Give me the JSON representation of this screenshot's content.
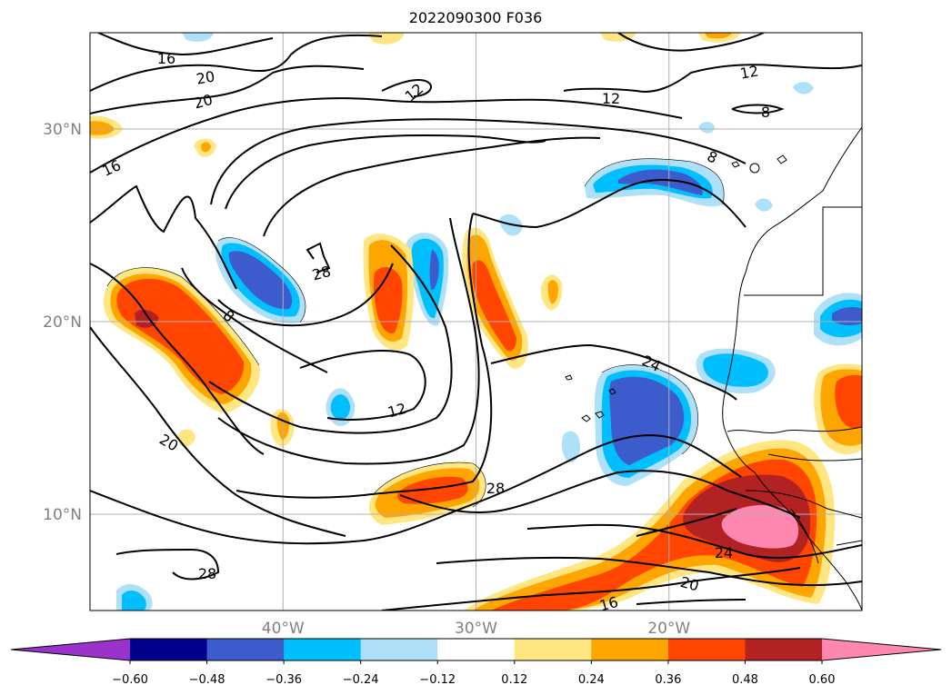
{
  "map": {
    "title": "2022090300 F036",
    "lon_range": [
      -50,
      -10
    ],
    "lat_range": [
      5,
      35
    ],
    "lon_ticks": [
      {
        "value": -40,
        "label": "40°W"
      },
      {
        "value": -30,
        "label": "30°W"
      },
      {
        "value": -20,
        "label": "20°W"
      }
    ],
    "lat_ticks": [
      {
        "value": 30,
        "label": "30°N"
      },
      {
        "value": 20,
        "label": "20°N"
      },
      {
        "value": 10,
        "label": "10°N"
      }
    ],
    "grid": true,
    "contour_labels": [
      "16",
      "20",
      "20",
      "12",
      "12",
      "12",
      "8",
      "16",
      "8",
      "28",
      "8",
      "24",
      "12",
      "20",
      "28",
      "28",
      "24",
      "20",
      "16"
    ]
  },
  "colorbar": {
    "levels": [
      -0.72,
      -0.6,
      -0.48,
      -0.36,
      -0.24,
      -0.12,
      0.12,
      0.24,
      0.36,
      0.48,
      0.6,
      0.72
    ],
    "tick_labels": [
      "−0.60",
      "−0.48",
      "−0.36",
      "−0.24",
      "−0.12",
      "0.12",
      "0.24",
      "0.36",
      "0.48",
      "0.60"
    ],
    "colors": [
      "#9933cc",
      "#00008b",
      "#3d5ccc",
      "#00bfff",
      "#aee0fa",
      "#ffffff",
      "#ffe680",
      "#ffa500",
      "#ff4500",
      "#b22222",
      "#ff88b0"
    ],
    "extend": "both"
  }
}
